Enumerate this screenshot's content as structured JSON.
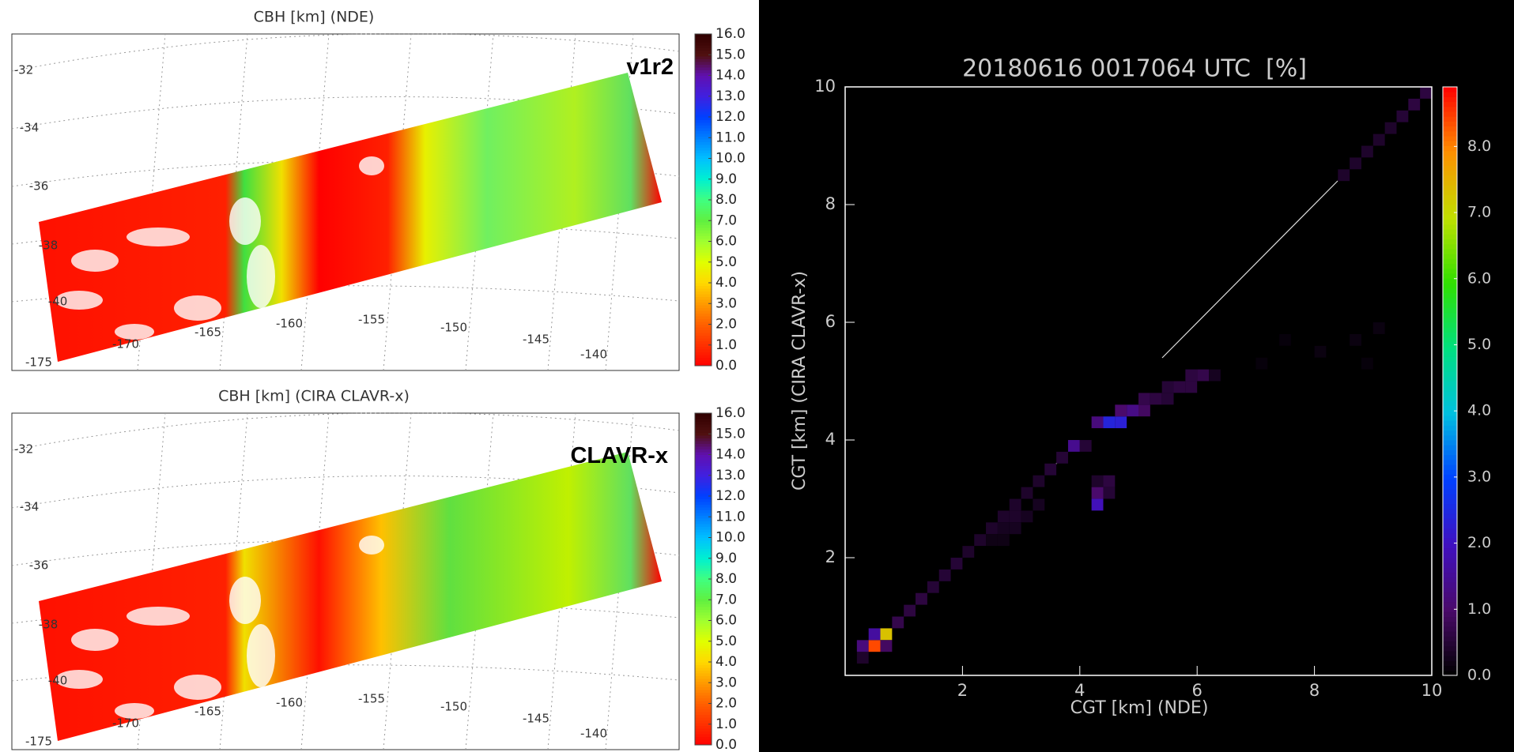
{
  "chart_data": [
    {
      "type": "map",
      "title": "CBH [km] (NDE)",
      "annotation": "v1r2",
      "lat_labels": [
        "-32",
        "-34",
        "-36",
        "-38",
        "-40",
        "-175"
      ],
      "lon_labels": [
        "-170",
        "-165",
        "-160",
        "-155",
        "-150",
        "-145",
        "-140"
      ],
      "colorbar": {
        "zlim": [
          0,
          16
        ],
        "ticks": [
          {
            "value": 0,
            "label": "0.0"
          },
          {
            "value": 1,
            "label": "1.0"
          },
          {
            "value": 2,
            "label": "2.0"
          },
          {
            "value": 3,
            "label": "3.0"
          },
          {
            "value": 4,
            "label": "4.0"
          },
          {
            "value": 5,
            "label": "5.0"
          },
          {
            "value": 6,
            "label": "6.0"
          },
          {
            "value": 7,
            "label": "7.0"
          },
          {
            "value": 8,
            "label": "8.0"
          },
          {
            "value": 9,
            "label": "9.0"
          },
          {
            "value": 10,
            "label": "10.0"
          },
          {
            "value": 11,
            "label": "11.0"
          },
          {
            "value": 12,
            "label": "12.0"
          },
          {
            "value": 13,
            "label": "13.0"
          },
          {
            "value": 14,
            "label": "14.0"
          },
          {
            "value": 15,
            "label": "15.0"
          },
          {
            "value": 16,
            "label": "16.0"
          }
        ],
        "colors": [
          "#ff0000",
          "#ff3000",
          "#ff6000",
          "#ff9a00",
          "#ffd800",
          "#e0ff00",
          "#a0ff30",
          "#60f040",
          "#40ff80",
          "#00f0d0",
          "#00c0ff",
          "#0080ff",
          "#0040ff",
          "#4020e0",
          "#6010b0",
          "#501010",
          "#300000"
        ]
      }
    },
    {
      "type": "map",
      "title": "CBH [km] (CIRA CLAVR-x)",
      "annotation": "CLAVR-x",
      "lat_labels": [
        "-32",
        "-34",
        "-36",
        "-38",
        "-40",
        "-175"
      ],
      "lon_labels": [
        "-170",
        "-165",
        "-160",
        "-155",
        "-150",
        "-145",
        "-140"
      ],
      "colorbar": {
        "zlim": [
          0,
          16
        ],
        "ticks": [
          {
            "value": 0,
            "label": "0.0"
          },
          {
            "value": 1,
            "label": "1.0"
          },
          {
            "value": 2,
            "label": "2.0"
          },
          {
            "value": 3,
            "label": "3.0"
          },
          {
            "value": 4,
            "label": "4.0"
          },
          {
            "value": 5,
            "label": "5.0"
          },
          {
            "value": 6,
            "label": "6.0"
          },
          {
            "value": 7,
            "label": "7.0"
          },
          {
            "value": 8,
            "label": "8.0"
          },
          {
            "value": 9,
            "label": "9.0"
          },
          {
            "value": 10,
            "label": "10.0"
          },
          {
            "value": 11,
            "label": "11.0"
          },
          {
            "value": 12,
            "label": "12.0"
          },
          {
            "value": 13,
            "label": "13.0"
          },
          {
            "value": 14,
            "label": "14.0"
          },
          {
            "value": 15,
            "label": "15.0"
          },
          {
            "value": 16,
            "label": "16.0"
          }
        ],
        "colors": [
          "#ff0000",
          "#ff3000",
          "#ff6000",
          "#ff9a00",
          "#ffd800",
          "#e0ff00",
          "#a0ff30",
          "#60f040",
          "#40ff80",
          "#00f0d0",
          "#00c0ff",
          "#0080ff",
          "#0040ff",
          "#4020e0",
          "#6010b0",
          "#501010",
          "#300000"
        ]
      }
    },
    {
      "type": "heatmap",
      "title": "20180616 0017064 UTC  [%]",
      "xlabel": "CGT [km] (NDE)",
      "ylabel": "CGT [km] (CIRA CLAVR-x)",
      "xlim": [
        0,
        10
      ],
      "ylim": [
        0,
        10
      ],
      "xticks": [
        2,
        4,
        6,
        8,
        10
      ],
      "yticks": [
        2,
        4,
        6,
        8,
        10
      ],
      "x": [
        0.3,
        0.3,
        0.5,
        0.5,
        0.7,
        0.7,
        0.9,
        1.1,
        1.3,
        1.5,
        1.7,
        1.9,
        2.1,
        2.3,
        2.5,
        2.7,
        2.9,
        3.1,
        3.3,
        3.5,
        3.7,
        3.9,
        4.1,
        2.5,
        2.7,
        2.9,
        3.1,
        2.9,
        3.3,
        2.7,
        4.3,
        4.5,
        4.7,
        4.7,
        4.9,
        5.1,
        5.1,
        5.3,
        5.5,
        5.5,
        5.7,
        5.9,
        5.9,
        6.1,
        6.3,
        4.3,
        4.3,
        4.5,
        4.5,
        4.3,
        8.5,
        8.7,
        8.9,
        9.1,
        9.3,
        9.5,
        9.7,
        9.9,
        7.5,
        8.1,
        8.7,
        9.1,
        8.9,
        7.1
      ],
      "y": [
        0.3,
        0.5,
        0.5,
        0.7,
        0.7,
        0.5,
        0.9,
        1.1,
        1.3,
        1.5,
        1.7,
        1.9,
        2.1,
        2.3,
        2.5,
        2.7,
        2.9,
        3.1,
        3.3,
        3.5,
        3.7,
        3.9,
        3.9,
        2.3,
        2.5,
        2.7,
        2.7,
        2.5,
        2.9,
        2.3,
        4.3,
        4.3,
        4.3,
        4.5,
        4.5,
        4.5,
        4.7,
        4.7,
        4.7,
        4.9,
        4.9,
        4.9,
        5.1,
        5.1,
        5.1,
        2.9,
        3.1,
        3.1,
        3.3,
        3.3,
        8.5,
        8.7,
        8.9,
        9.1,
        9.3,
        9.5,
        9.7,
        9.9,
        5.7,
        5.5,
        5.7,
        5.9,
        5.3,
        5.3
      ],
      "values": [
        0.4,
        1.2,
        8.4,
        1.6,
        7.3,
        0.9,
        0.7,
        0.6,
        0.6,
        0.5,
        0.5,
        0.5,
        0.4,
        0.4,
        0.4,
        0.4,
        0.4,
        0.4,
        0.4,
        0.5,
        0.5,
        1.4,
        0.5,
        0.2,
        0.3,
        0.4,
        0.3,
        0.3,
        0.3,
        0.2,
        1.2,
        2.4,
        2.3,
        1.0,
        1.3,
        0.9,
        0.7,
        0.6,
        0.5,
        0.5,
        0.6,
        0.6,
        0.6,
        0.7,
        0.3,
        1.9,
        1.0,
        0.5,
        0.6,
        0.4,
        0.4,
        0.4,
        0.4,
        0.4,
        0.4,
        0.5,
        0.6,
        0.6,
        0.1,
        0.15,
        0.15,
        0.15,
        0.1,
        0.1
      ],
      "colorbar": {
        "zlim": [
          0,
          8.9
        ],
        "ticks": [
          {
            "value": 0,
            "label": "0.0"
          },
          {
            "value": 1,
            "label": "1.0"
          },
          {
            "value": 2,
            "label": "2.0"
          },
          {
            "value": 3,
            "label": "3.0"
          },
          {
            "value": 4,
            "label": "4.0"
          },
          {
            "value": 5,
            "label": "5.0"
          },
          {
            "value": 6,
            "label": "6.0"
          },
          {
            "value": 7,
            "label": "7.0"
          },
          {
            "value": 8,
            "label": "8.0"
          }
        ],
        "colors": [
          "#000000",
          "#4a0a6a",
          "#4010c0",
          "#0040ff",
          "#00c0e0",
          "#00e080",
          "#30e000",
          "#c0e000",
          "#ff9000",
          "#ff0000"
        ]
      }
    }
  ]
}
